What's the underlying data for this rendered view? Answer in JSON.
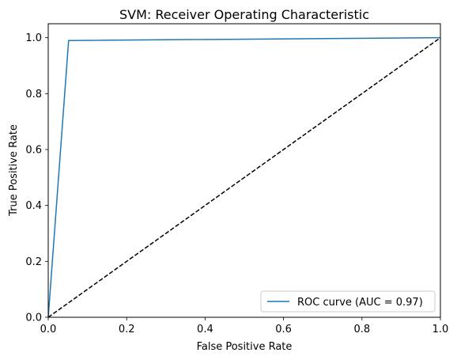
{
  "chart_data": {
    "type": "line",
    "title": "SVM: Receiver Operating Characteristic",
    "xlabel": "False Positive Rate",
    "ylabel": "True Positive Rate",
    "xlim": [
      0.0,
      1.0
    ],
    "ylim": [
      0.0,
      1.05
    ],
    "xticks": [
      "0.0",
      "0.2",
      "0.4",
      "0.6",
      "0.8",
      "1.0"
    ],
    "yticks": [
      "0.0",
      "0.2",
      "0.4",
      "0.6",
      "0.8",
      "1.0"
    ],
    "grid": false,
    "legend_position": "lower-right",
    "series": [
      {
        "name": "ROC curve (AUC = 0.97)",
        "color": "#1f77b4",
        "linestyle": "solid",
        "x": [
          0.0,
          0.052,
          1.0
        ],
        "y": [
          0.0,
          0.99,
          1.0
        ]
      },
      {
        "color": "#000000",
        "linestyle": "dashed",
        "x": [
          0.0,
          1.0
        ],
        "y": [
          0.0,
          1.0
        ]
      }
    ]
  }
}
